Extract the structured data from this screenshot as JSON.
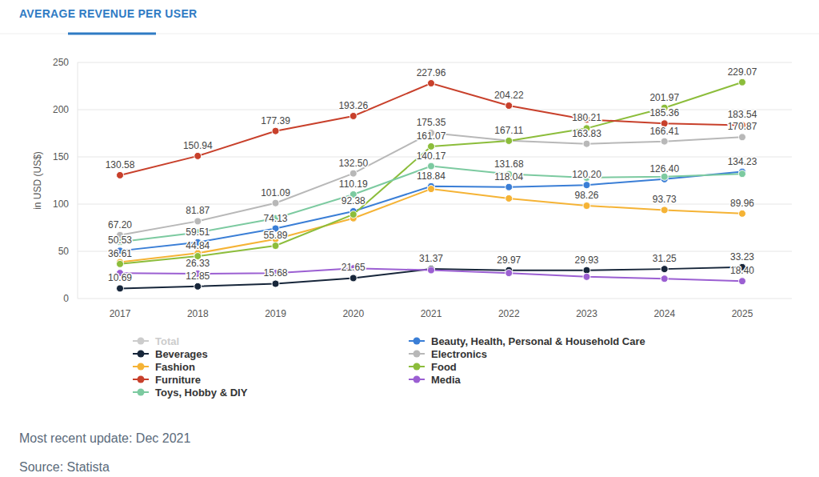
{
  "chart_data": {
    "type": "line",
    "title": "AVERAGE REVENUE PER USER",
    "y_label": "in USD (US$)",
    "footer": [
      "Most recent update: Dec 2021",
      "Source: Statista"
    ],
    "categories": [
      "2017",
      "2018",
      "2019",
      "2020",
      "2021",
      "2022",
      "2023",
      "2024",
      "2025"
    ],
    "ylim": [
      0,
      250
    ],
    "yticks": [
      0,
      50,
      100,
      150,
      200,
      250
    ],
    "grid": true,
    "marker": "circle",
    "data_labels": true,
    "series": [
      {
        "name": "Total",
        "color": "#cccccc",
        "values": [
          null,
          null,
          null,
          null,
          null,
          null,
          null,
          null,
          null
        ]
      },
      {
        "name": "Beauty, Health, Personal & Household Care",
        "color": "#3a7ed6",
        "values": [
          50.53,
          59.51,
          74.13,
          92.38,
          118.84,
          118.04,
          120.2,
          126.4,
          134.23
        ],
        "value_labels": [
          "50.53",
          "59.51",
          "74.13",
          "92.38",
          "118.84",
          "118.04",
          "120.20",
          "126.40",
          "134.23"
        ]
      },
      {
        "name": "Beverages",
        "color": "#17263a",
        "values": [
          10.69,
          12.85,
          15.68,
          21.65,
          31.37,
          29.97,
          29.93,
          31.25,
          33.23
        ],
        "value_labels": [
          "10.69",
          "12.85",
          "15.68",
          "21.65",
          "31.37",
          "29.97",
          "29.93",
          "31.25",
          "33.23"
        ]
      },
      {
        "name": "Electronics",
        "color": "#b8b8b8",
        "values": [
          67.2,
          81.87,
          101.09,
          132.5,
          175.35,
          167.11,
          163.83,
          166.41,
          170.87
        ],
        "value_labels": [
          "67.20",
          "81.87",
          "101.09",
          "132.50",
          "175.35",
          "167.11",
          "163.83",
          "166.41",
          "170.87"
        ]
      },
      {
        "name": "Fashion",
        "color": "#f5b335",
        "values": [
          38.5,
          48,
          63,
          85,
          116,
          106,
          98.26,
          93.73,
          89.96
        ],
        "value_labels": [
          null,
          null,
          null,
          null,
          null,
          null,
          "98.26",
          "93.73",
          "89.96"
        ]
      },
      {
        "name": "Food",
        "color": "#8cbd3b",
        "values": [
          36.61,
          44.84,
          55.89,
          89,
          161.07,
          167,
          180.21,
          201.97,
          229.07
        ],
        "value_labels": [
          "36.61",
          "44.84",
          "55.89",
          null,
          "161.07",
          null,
          "180.21",
          "201.97",
          "229.07"
        ]
      },
      {
        "name": "Furniture",
        "color": "#c8402b",
        "values": [
          130.58,
          150.94,
          177.39,
          193.26,
          227.96,
          204.22,
          189.5,
          185.36,
          183.54
        ],
        "value_labels": [
          "130.58",
          "150.94",
          "177.39",
          "193.26",
          "227.96",
          "204.22",
          null,
          "185.36",
          "183.54"
        ]
      },
      {
        "name": "Media",
        "color": "#9b5fd2",
        "values": [
          27,
          26.33,
          27,
          32,
          30,
          27,
          23,
          21,
          18.4
        ],
        "value_labels": [
          null,
          "26.33",
          null,
          null,
          null,
          null,
          null,
          null,
          "18.40"
        ]
      },
      {
        "name": "Toys, Hobby & DIY",
        "color": "#7ccaa0",
        "values": [
          60,
          70,
          85,
          110.19,
          140.17,
          131.68,
          128,
          129,
          132
        ],
        "value_labels": [
          null,
          null,
          null,
          "110.19",
          "140.17",
          "131.68",
          null,
          null,
          null
        ]
      }
    ]
  }
}
